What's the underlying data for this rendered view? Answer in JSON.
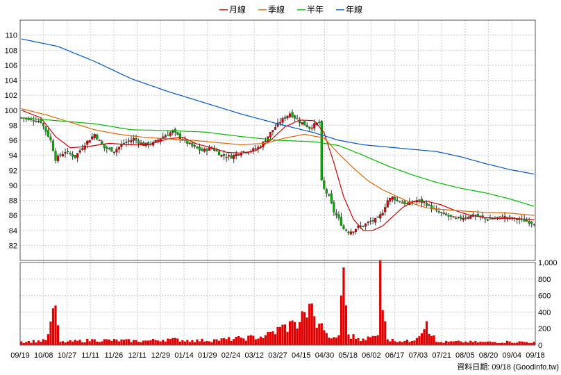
{
  "chart_data": {
    "type": "candlestick-with-volume",
    "legend": [
      {
        "name": "月線",
        "color": "#cc0000"
      },
      {
        "name": "季線",
        "color": "#dd6600"
      },
      {
        "name": "半年",
        "color": "#00bb00"
      },
      {
        "name": "年線",
        "color": "#0055cc"
      }
    ],
    "price_axis": {
      "ylim": [
        80,
        112
      ],
      "ticks": [
        "110",
        "108",
        "106",
        "104",
        "102",
        "100",
        "98",
        "96",
        "94",
        "92",
        "90",
        "88",
        "86",
        "84",
        "82"
      ],
      "tick_values": [
        110,
        108,
        106,
        104,
        102,
        100,
        98,
        96,
        94,
        92,
        90,
        88,
        86,
        84,
        82
      ]
    },
    "volume_axis": {
      "ylim": [
        0,
        1000
      ],
      "ticks": [
        "1,000",
        "800",
        "600",
        "400",
        "200",
        "0"
      ],
      "tick_values": [
        1000,
        800,
        600,
        400,
        200,
        0
      ]
    },
    "x_labels": [
      "09/19",
      "10/08",
      "10/27",
      "11/11",
      "11/26",
      "12/11",
      "12/29",
      "01/14",
      "01/29",
      "02/24",
      "03/12",
      "03/27",
      "04/15",
      "04/30",
      "05/18",
      "06/02",
      "06/17",
      "07/03",
      "07/21",
      "08/05",
      "08/20",
      "09/04",
      "09/18"
    ],
    "series": {
      "close": [
        [
          0,
          99.0
        ],
        [
          8,
          98.5
        ],
        [
          12,
          96.0
        ],
        [
          14,
          93.5
        ],
        [
          18,
          94.5
        ],
        [
          22,
          93.8
        ],
        [
          26,
          95.5
        ],
        [
          30,
          96.8
        ],
        [
          34,
          95.0
        ],
        [
          38,
          94.6
        ],
        [
          42,
          95.6
        ],
        [
          46,
          96.2
        ],
        [
          50,
          95.4
        ],
        [
          54,
          95.6
        ],
        [
          58,
          96.5
        ],
        [
          62,
          97.2
        ],
        [
          66,
          96.1
        ],
        [
          70,
          95.2
        ],
        [
          74,
          94.6
        ],
        [
          78,
          95.0
        ],
        [
          82,
          94.0
        ],
        [
          86,
          93.8
        ],
        [
          90,
          94.5
        ],
        [
          94,
          94.6
        ],
        [
          98,
          95.2
        ],
        [
          102,
          97.0
        ],
        [
          106,
          98.5
        ],
        [
          110,
          99.6
        ],
        [
          114,
          98.5
        ],
        [
          118,
          97.7
        ],
        [
          122,
          98.4
        ],
        [
          123,
          90.5
        ],
        [
          124,
          89.5
        ],
        [
          126,
          88.5
        ],
        [
          128,
          86.5
        ],
        [
          130,
          85.5
        ],
        [
          132,
          84.2
        ],
        [
          134,
          83.8
        ],
        [
          136,
          84.0
        ],
        [
          138,
          84.5
        ],
        [
          140,
          84.6
        ],
        [
          142,
          85.0
        ],
        [
          144,
          85.3
        ],
        [
          146,
          85.5
        ],
        [
          148,
          86.5
        ],
        [
          150,
          88.0
        ],
        [
          152,
          88.4
        ],
        [
          154,
          88.0
        ],
        [
          158,
          87.5
        ],
        [
          162,
          88.0
        ],
        [
          166,
          87.5
        ],
        [
          170,
          86.5
        ],
        [
          174,
          86.0
        ],
        [
          178,
          85.5
        ],
        [
          182,
          85.8
        ],
        [
          186,
          86.0
        ],
        [
          190,
          85.5
        ],
        [
          194,
          85.6
        ],
        [
          198,
          85.8
        ],
        [
          202,
          85.5
        ],
        [
          206,
          85.3
        ],
        [
          210,
          85.0
        ]
      ],
      "ma_month": [
        [
          0,
          100.0
        ],
        [
          8,
          99.0
        ],
        [
          14,
          96.5
        ],
        [
          20,
          95.0
        ],
        [
          28,
          95.2
        ],
        [
          36,
          95.6
        ],
        [
          44,
          95.4
        ],
        [
          52,
          95.4
        ],
        [
          60,
          96.2
        ],
        [
          66,
          96.4
        ],
        [
          72,
          95.5
        ],
        [
          78,
          95.0
        ],
        [
          84,
          94.4
        ],
        [
          90,
          94.3
        ],
        [
          96,
          94.6
        ],
        [
          102,
          96.0
        ],
        [
          108,
          97.8
        ],
        [
          114,
          98.7
        ],
        [
          120,
          98.6
        ],
        [
          124,
          97.0
        ],
        [
          128,
          93.0
        ],
        [
          132,
          88.5
        ],
        [
          136,
          85.5
        ],
        [
          140,
          84.0
        ],
        [
          144,
          84.0
        ],
        [
          148,
          84.6
        ],
        [
          152,
          85.8
        ],
        [
          156,
          87.0
        ],
        [
          160,
          87.8
        ],
        [
          166,
          87.9
        ],
        [
          172,
          87.4
        ],
        [
          178,
          86.6
        ],
        [
          184,
          86.0
        ],
        [
          190,
          85.7
        ],
        [
          196,
          85.6
        ],
        [
          202,
          85.6
        ],
        [
          210,
          85.4
        ]
      ],
      "ma_quarter": [
        [
          0,
          100.2
        ],
        [
          10,
          99.4
        ],
        [
          20,
          98.4
        ],
        [
          30,
          97.4
        ],
        [
          40,
          96.8
        ],
        [
          50,
          96.4
        ],
        [
          60,
          96.2
        ],
        [
          70,
          96.0
        ],
        [
          80,
          95.7
        ],
        [
          90,
          95.4
        ],
        [
          100,
          95.6
        ],
        [
          108,
          96.3
        ],
        [
          116,
          96.8
        ],
        [
          124,
          96.3
        ],
        [
          130,
          94.2
        ],
        [
          136,
          92.3
        ],
        [
          142,
          90.6
        ],
        [
          148,
          89.4
        ],
        [
          154,
          88.5
        ],
        [
          160,
          87.6
        ],
        [
          166,
          87.0
        ],
        [
          172,
          86.8
        ],
        [
          180,
          86.6
        ],
        [
          190,
          86.4
        ],
        [
          200,
          86.3
        ],
        [
          210,
          86.0
        ]
      ],
      "ma_half": [
        [
          0,
          99.0
        ],
        [
          15,
          98.6
        ],
        [
          30,
          98.2
        ],
        [
          45,
          97.4
        ],
        [
          60,
          97.3
        ],
        [
          75,
          97.1
        ],
        [
          90,
          96.5
        ],
        [
          105,
          96.0
        ],
        [
          120,
          95.8
        ],
        [
          130,
          95.3
        ],
        [
          140,
          94.0
        ],
        [
          150,
          92.6
        ],
        [
          160,
          91.4
        ],
        [
          170,
          90.4
        ],
        [
          180,
          89.6
        ],
        [
          190,
          89.0
        ],
        [
          200,
          88.2
        ],
        [
          210,
          87.2
        ]
      ],
      "ma_year": [
        [
          0,
          109.5
        ],
        [
          15,
          108.5
        ],
        [
          30,
          106.5
        ],
        [
          45,
          104.2
        ],
        [
          60,
          102.5
        ],
        [
          75,
          101.0
        ],
        [
          90,
          99.5
        ],
        [
          105,
          98.2
        ],
        [
          120,
          97.0
        ],
        [
          130,
          96.0
        ],
        [
          140,
          95.4
        ],
        [
          150,
          95.1
        ],
        [
          160,
          94.8
        ],
        [
          170,
          94.5
        ],
        [
          180,
          93.8
        ],
        [
          190,
          92.9
        ],
        [
          200,
          92.1
        ],
        [
          210,
          91.5
        ]
      ],
      "volume": [
        [
          0,
          45
        ],
        [
          10,
          60
        ],
        [
          14,
          480
        ],
        [
          16,
          40
        ],
        [
          30,
          70
        ],
        [
          50,
          55
        ],
        [
          60,
          80
        ],
        [
          70,
          60
        ],
        [
          80,
          70
        ],
        [
          90,
          90
        ],
        [
          100,
          120
        ],
        [
          108,
          250
        ],
        [
          112,
          280
        ],
        [
          116,
          400
        ],
        [
          118,
          500
        ],
        [
          120,
          350
        ],
        [
          122,
          260
        ],
        [
          124,
          180
        ],
        [
          126,
          90
        ],
        [
          130,
          120
        ],
        [
          132,
          940
        ],
        [
          134,
          130
        ],
        [
          140,
          80
        ],
        [
          146,
          120
        ],
        [
          147,
          1030
        ],
        [
          150,
          70
        ],
        [
          160,
          50
        ],
        [
          166,
          290
        ],
        [
          170,
          40
        ],
        [
          180,
          45
        ],
        [
          190,
          40
        ],
        [
          200,
          45
        ],
        [
          210,
          40
        ]
      ]
    }
  },
  "footer": {
    "text": "資料日期: 09/18 (Goodinfo.tw)"
  }
}
